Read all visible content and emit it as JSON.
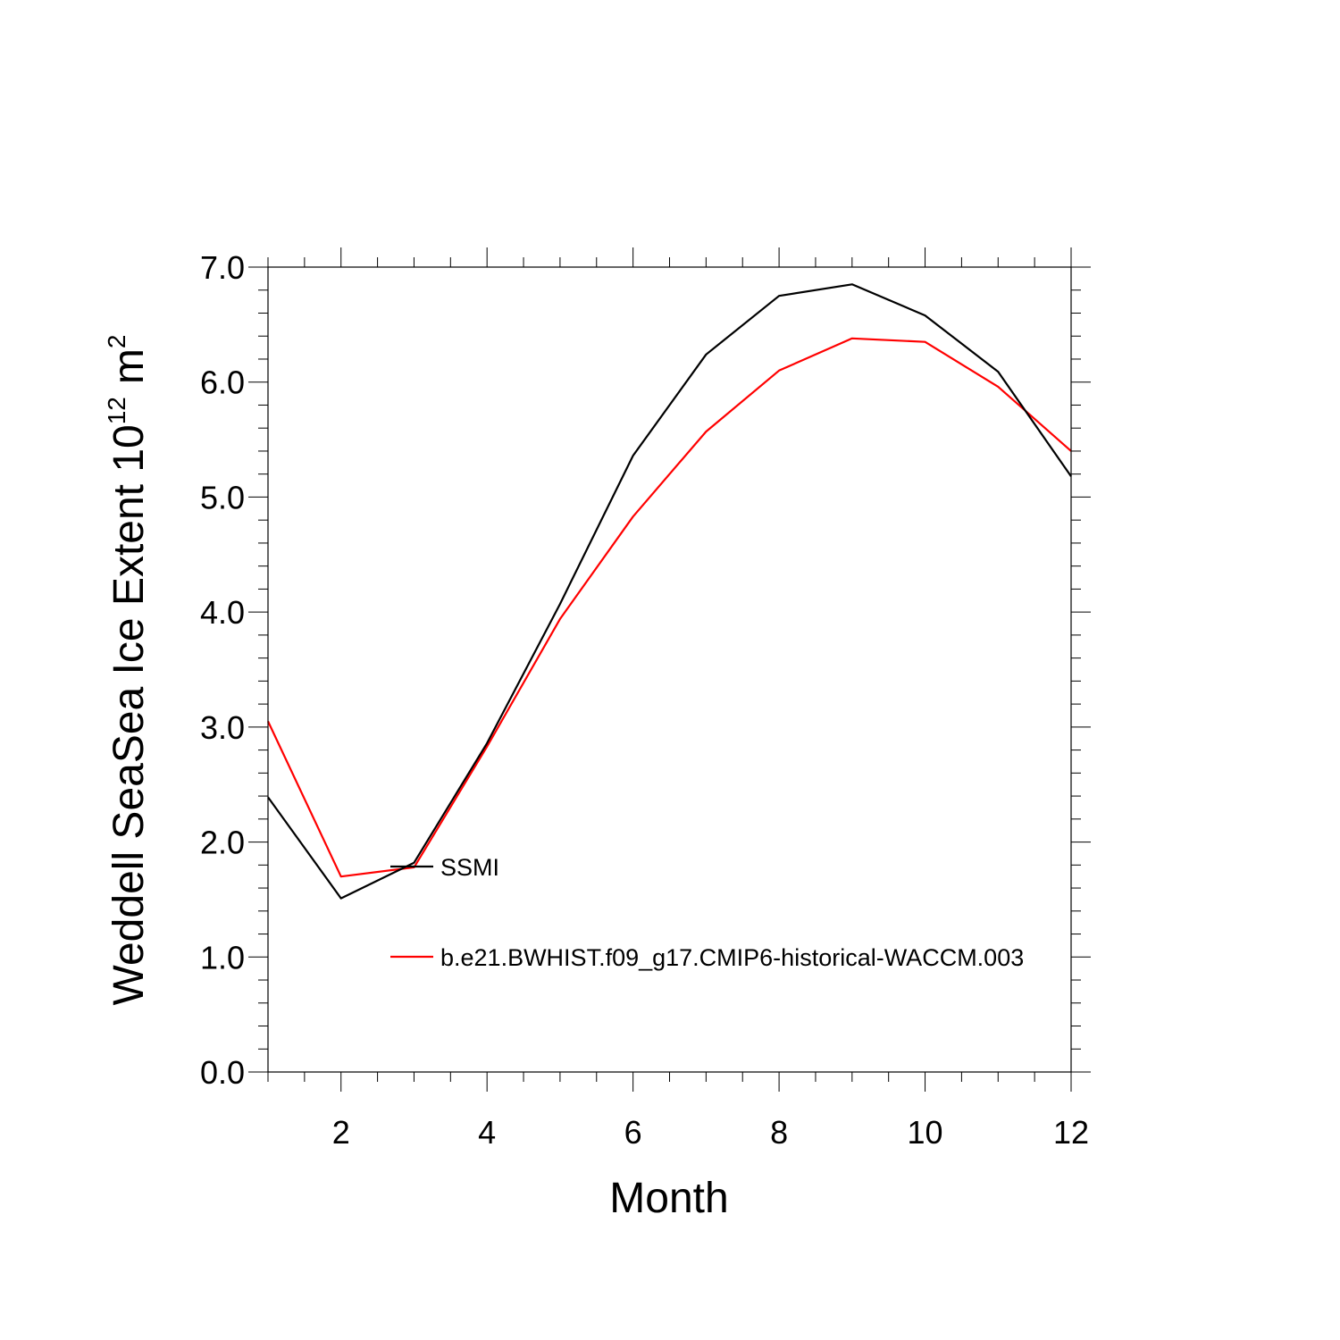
{
  "chart_data": {
    "type": "line",
    "title": "",
    "xlabel": "Month",
    "ylabel": "Weddell SeaSea Ice Extent 10",
    "ylabel_sup": "12",
    "ylabel_unit": "m",
    "ylabel_unit_sup": "2",
    "xlim": [
      1,
      12
    ],
    "ylim": [
      0.0,
      7.0
    ],
    "x_ticks": [
      2,
      4,
      6,
      8,
      10,
      12
    ],
    "x_tick_labels": [
      "2",
      "4",
      "6",
      "8",
      "10",
      "12"
    ],
    "y_ticks": [
      0,
      1,
      2,
      3,
      4,
      5,
      6,
      7
    ],
    "y_tick_labels": [
      "0.0",
      "1.0",
      "2.0",
      "3.0",
      "4.0",
      "5.0",
      "6.0",
      "7.0"
    ],
    "x": [
      1,
      2,
      3,
      4,
      5,
      6,
      7,
      8,
      9,
      10,
      11,
      12
    ],
    "series": [
      {
        "name": "SSMI",
        "color": "#000000",
        "values": [
          2.39,
          1.51,
          1.82,
          2.86,
          4.07,
          5.36,
          6.24,
          6.75,
          6.85,
          6.58,
          6.09,
          5.18
        ]
      },
      {
        "name": "b.e21.BWHIST.f09_g17.CMIP6-historical-WACCM.003",
        "color": "#ff0000",
        "values": [
          3.05,
          1.7,
          1.78,
          2.83,
          3.94,
          4.83,
          5.57,
          6.1,
          6.38,
          6.35,
          5.96,
          5.4
        ]
      }
    ],
    "legend_position": "inside-lower-left",
    "grid": false
  }
}
